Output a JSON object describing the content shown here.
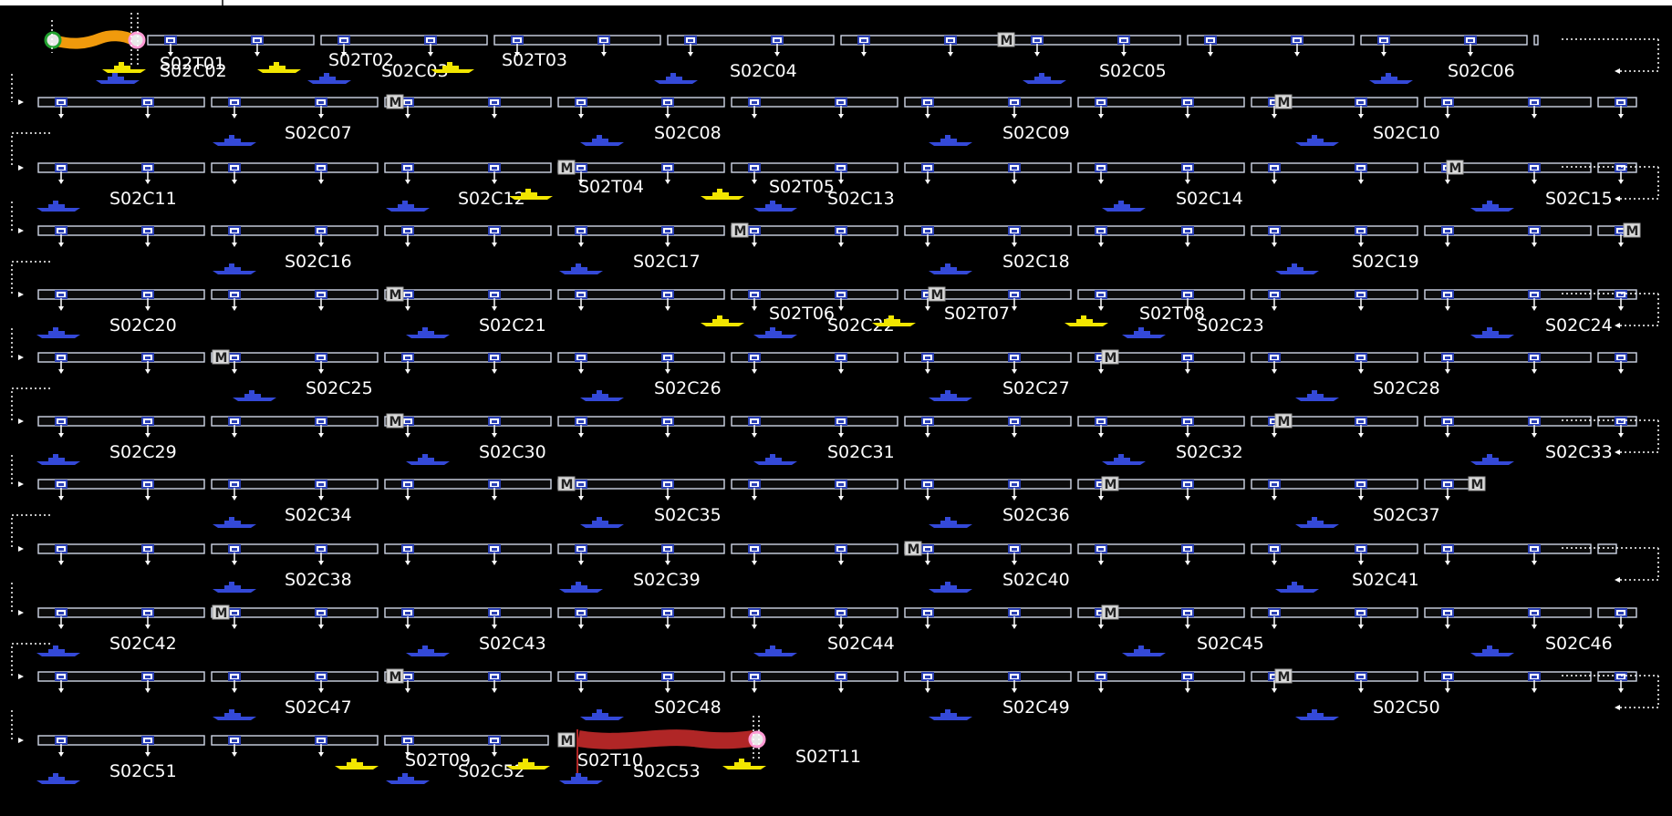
{
  "colors": {
    "background": "#000000",
    "rail": "#cfd6e6",
    "connector": "#2a3fb4",
    "marker_box": "#d9d9d9",
    "label": "#ffffff",
    "ship_idle": "#3449d8",
    "ship_transit": "#f2e600",
    "route_start": "#f09a0c",
    "route_end": "#b02626",
    "node_start": "#21a02e",
    "node_end": "#ff9ad5"
  },
  "rows": [
    {
      "cells": [
        {
          "label": "S02C02"
        },
        {
          "label": "S02C03"
        },
        {
          "label": "S02C04"
        },
        {
          "label": "S02C05"
        },
        {
          "label": "S02C06"
        }
      ]
    },
    {
      "cells": [
        {
          "label": "S02C07"
        },
        {
          "label": "S02C08"
        },
        {
          "label": "S02C09"
        },
        {
          "label": "S02C10"
        }
      ]
    },
    {
      "cells": [
        {
          "label": "S02C11"
        },
        {
          "label": "S02C12"
        },
        {
          "label": "S02C13"
        },
        {
          "label": "S02C14"
        },
        {
          "label": "S02C15"
        }
      ]
    },
    {
      "cells": [
        {
          "label": "S02C16"
        },
        {
          "label": "S02C17"
        },
        {
          "label": "S02C18"
        },
        {
          "label": "S02C19"
        }
      ]
    },
    {
      "cells": [
        {
          "label": "S02C20"
        },
        {
          "label": "S02C21"
        },
        {
          "label": "S02C22"
        },
        {
          "label": "S02C23"
        },
        {
          "label": "S02C24"
        }
      ]
    },
    {
      "cells": [
        {
          "label": "S02C25"
        },
        {
          "label": "S02C26"
        },
        {
          "label": "S02C27"
        },
        {
          "label": "S02C28"
        }
      ]
    },
    {
      "cells": [
        {
          "label": "S02C29"
        },
        {
          "label": "S02C30"
        },
        {
          "label": "S02C31"
        },
        {
          "label": "S02C32"
        },
        {
          "label": "S02C33"
        }
      ]
    },
    {
      "cells": [
        {
          "label": "S02C34"
        },
        {
          "label": "S02C35"
        },
        {
          "label": "S02C36"
        },
        {
          "label": "S02C37"
        }
      ]
    },
    {
      "cells": [
        {
          "label": "S02C38"
        },
        {
          "label": "S02C39"
        },
        {
          "label": "S02C40"
        },
        {
          "label": "S02C41"
        }
      ]
    },
    {
      "cells": [
        {
          "label": "S02C42"
        },
        {
          "label": "S02C43"
        },
        {
          "label": "S02C44"
        },
        {
          "label": "S02C45"
        },
        {
          "label": "S02C46"
        }
      ]
    },
    {
      "cells": [
        {
          "label": "S02C47"
        },
        {
          "label": "S02C48"
        },
        {
          "label": "S02C49"
        },
        {
          "label": "S02C50"
        }
      ]
    },
    {
      "cells": [
        {
          "label": "S02C51"
        },
        {
          "label": "S02C52"
        },
        {
          "label": "S02C53"
        }
      ]
    }
  ],
  "transit_labels": [
    "S02T01",
    "S02T02",
    "S02T03",
    "S02T04",
    "S02T05",
    "S02T06",
    "S02T07",
    "S02T08",
    "S02T09",
    "S02T10",
    "S02T11"
  ],
  "row_marker": "M",
  "route_start_node": "⊕",
  "route_end_node": "⊕"
}
